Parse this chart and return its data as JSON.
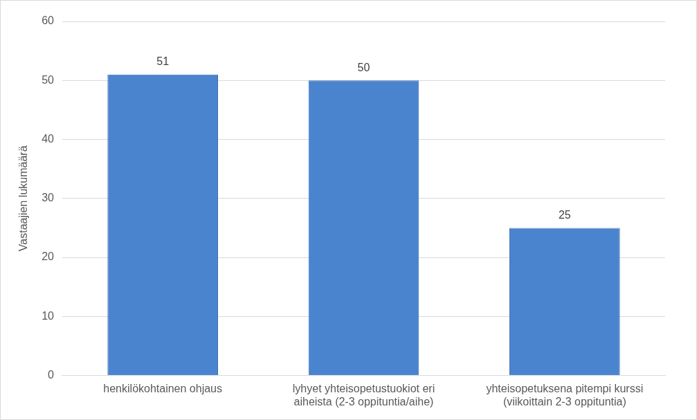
{
  "chart_data": {
    "type": "bar",
    "ylabel": "Vastaajien lukumäärä",
    "categories": [
      "henkilökohtainen ohjaus",
      "lyhyet yhteisopetustuokiot eri aiheista (2-3 oppituntia/aihe)",
      "yhteisopetuksena pitempi kurssi (viikoittain 2-3 oppituntia)"
    ],
    "values": [
      51,
      50,
      25
    ],
    "color": "#4a84cf",
    "ylim": [
      0,
      60
    ],
    "yticks": [
      0,
      10,
      20,
      30,
      40,
      50,
      60
    ],
    "grid": "y",
    "data_labels": true,
    "legend": false
  }
}
